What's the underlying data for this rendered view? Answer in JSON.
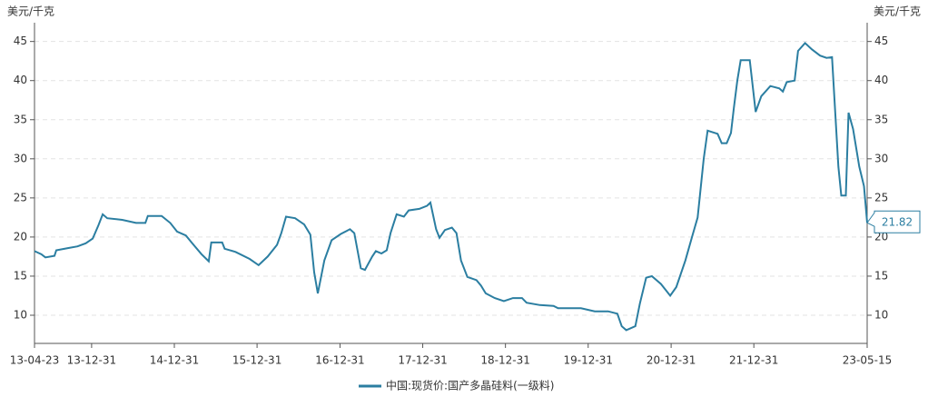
{
  "chart_data": {
    "type": "line",
    "y_label": "美元/千克",
    "y2_label": "美元/千克",
    "x": [
      "13-04-23",
      "13-05-23",
      "13-06-10",
      "13-07-20",
      "13-07-28",
      "13-09-20",
      "13-10-30",
      "13-12-05",
      "14-01-05",
      "14-01-30",
      "14-02-18",
      "14-03-10",
      "14-05-15",
      "14-07-15",
      "14-08-25",
      "14-09-05",
      "14-11-05",
      "14-12-13",
      "15-01-12",
      "15-02-20",
      "15-03-20",
      "15-04-30",
      "15-06-01",
      "15-06-12",
      "15-07-30",
      "15-08-10",
      "15-09-27",
      "15-11-28",
      "16-01-07",
      "16-02-16",
      "16-03-28",
      "16-04-16",
      "16-05-07",
      "16-06-16",
      "16-07-26",
      "16-08-22",
      "16-09-08",
      "16-09-24",
      "16-10-23",
      "16-11-24",
      "17-01-04",
      "17-02-13",
      "17-03-04",
      "17-04-02",
      "17-04-20",
      "17-05-22",
      "17-06-07",
      "17-07-02",
      "17-07-25",
      "17-08-11",
      "17-09-07",
      "17-10-09",
      "17-10-30",
      "17-12-16",
      "18-01-19",
      "18-02-03",
      "18-02-28",
      "18-03-15",
      "18-04-08",
      "18-05-09",
      "18-05-29",
      "18-06-18",
      "18-07-16",
      "18-08-25",
      "18-09-14",
      "18-10-05",
      "18-11-14",
      "18-12-24",
      "19-02-02",
      "19-03-14",
      "19-04-03",
      "19-06-01",
      "19-07-31",
      "19-08-20",
      "19-11-29",
      "20-01-29",
      "20-03-28",
      "20-05-08",
      "20-05-27",
      "20-06-16",
      "20-07-26",
      "20-08-15",
      "20-09-12",
      "20-10-07",
      "20-11-16",
      "20-12-27",
      "21-01-23",
      "21-03-04",
      "21-04-02",
      "21-04-27",
      "21-05-24",
      "21-06-10",
      "21-07-24",
      "21-08-11",
      "21-09-02",
      "21-09-21",
      "21-10-04",
      "21-10-19",
      "21-11-03",
      "21-12-13",
      "22-01-08",
      "22-02-02",
      "22-03-14",
      "22-04-22",
      "22-05-08",
      "22-05-25",
      "22-06-29",
      "22-07-14",
      "22-08-14",
      "22-09-13",
      "22-10-19",
      "22-11-17",
      "22-12-11",
      "23-01-08",
      "23-01-21",
      "23-02-10",
      "23-02-22",
      "23-03-14",
      "23-04-10",
      "23-05-01",
      "23-05-15"
    ],
    "series": [
      {
        "name": "中国:现货价:国产多晶硅料(一级料)",
        "color": "#2b7ea1",
        "values": [
          18.2,
          17.8,
          17.4,
          17.6,
          18.3,
          18.6,
          18.8,
          19.2,
          19.8,
          21.5,
          22.9,
          22.4,
          22.2,
          21.8,
          21.8,
          22.7,
          22.7,
          21.8,
          20.7,
          20.2,
          19.2,
          17.8,
          16.9,
          19.3,
          19.3,
          18.5,
          18.1,
          17.2,
          16.4,
          17.5,
          19.0,
          20.5,
          22.6,
          22.4,
          21.6,
          20.3,
          15.5,
          12.8,
          17.0,
          19.6,
          20.4,
          21.0,
          20.5,
          16.0,
          15.8,
          17.5,
          18.2,
          17.9,
          18.3,
          20.5,
          22.9,
          22.6,
          23.4,
          23.6,
          24.0,
          24.4,
          21.0,
          19.9,
          20.9,
          21.2,
          20.5,
          17.0,
          14.9,
          14.5,
          13.8,
          12.8,
          12.2,
          11.8,
          12.2,
          12.2,
          11.6,
          11.3,
          11.2,
          10.9,
          10.9,
          10.5,
          10.5,
          10.2,
          8.6,
          8.1,
          8.6,
          11.5,
          14.8,
          15.0,
          14.0,
          12.5,
          13.6,
          17.0,
          20.0,
          22.5,
          30.0,
          33.6,
          33.2,
          32.0,
          32.0,
          33.3,
          36.5,
          40.0,
          42.6,
          42.6,
          36.0,
          38.0,
          39.3,
          39.0,
          38.6,
          39.8,
          40.0,
          43.8,
          44.8,
          44.0,
          43.2,
          42.9,
          43.0,
          29.0,
          25.3,
          25.3,
          35.9,
          33.8,
          29.0,
          26.5,
          21.82
        ]
      }
    ],
    "xlim": [
      "13-04-23",
      "23-05-15"
    ],
    "xticks": [
      "13-04-23",
      "13-12-31",
      "14-12-31",
      "15-12-31",
      "16-12-31",
      "17-12-31",
      "18-12-31",
      "19-12-31",
      "20-12-31",
      "21-12-31",
      "23-05-15"
    ],
    "ylim": [
      6.4,
      47.4
    ],
    "yticks": [
      10,
      15,
      20,
      25,
      30,
      35,
      40,
      45
    ],
    "grid": true
  }
}
